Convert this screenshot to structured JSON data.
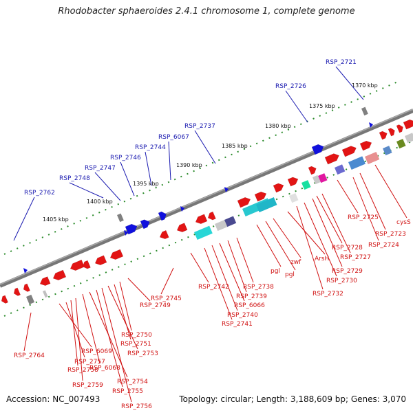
{
  "title": "Rhodobacter sphaeroides 2.4.1 chromosome 1, complete genome",
  "footer": {
    "accession": "Accession: NC_007493",
    "stats": "Topology: circular; Length: 3,188,609 bp; Genes: 3,070"
  },
  "scale_labels": [
    "1405 kbp",
    "1400 kbp",
    "1395 kbp",
    "1390 kbp",
    "1385 kbp",
    "1380 kbp",
    "1375 kbp",
    "1370 kbp"
  ],
  "top_labels": [
    "RSP_2762",
    "RSP_2748",
    "RSP_2747",
    "RSP_2746",
    "RSP_2744",
    "RSP_6067",
    "RSP_2737",
    "RSP_2726",
    "RSP_2721"
  ],
  "bottom_labels": [
    "RSP_2764",
    "RSP_6069",
    "RSP_2757",
    "RSP_2758",
    "RSP_2759",
    "RSP_6068",
    "RSP_2754",
    "RSP_2755",
    "RSP_2756",
    "RSP_2753",
    "RSP_2751",
    "RSP_2750",
    "RSP_2749",
    "RSP_2745",
    "RSP_2742",
    "RSP_2741",
    "RSP_2740",
    "RSP_6066",
    "RSP_2739",
    "RSP_2738",
    "pgl",
    "pgl",
    "zwf",
    "ArsH",
    "RSP_2732",
    "RSP_2730",
    "RSP_2729",
    "RSP_2728",
    "RSP_2727",
    "RSP_2725",
    "RSP_2724",
    "RSP_2723",
    "cysS"
  ]
}
